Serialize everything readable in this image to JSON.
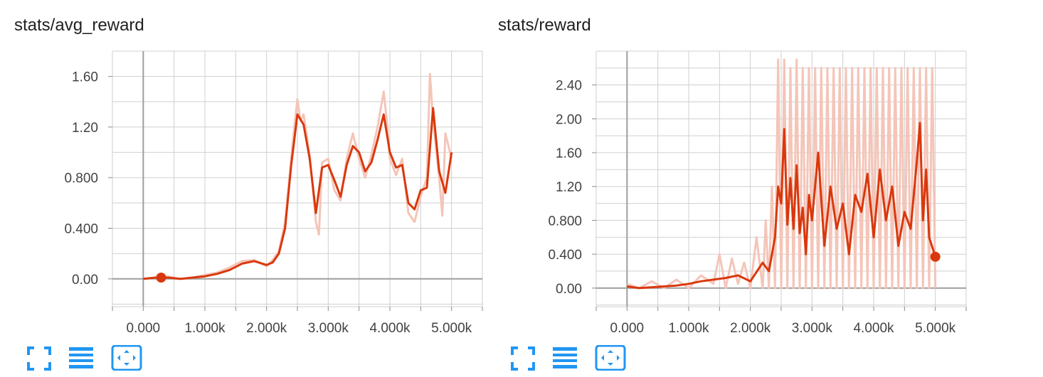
{
  "colors": {
    "accent": "#d9380d",
    "raw": "#f4c5b8",
    "icon": "#2196f3",
    "grid": "#cfcfcf",
    "axis": "#9e9e9e"
  },
  "toolbar_icons": [
    "expand-icon",
    "data-selection-icon",
    "fit-domain-icon"
  ],
  "chart_data": [
    {
      "type": "line",
      "title": "stats/avg_reward",
      "xlabel": "",
      "ylabel": "",
      "xlim": [
        -500,
        5500
      ],
      "ylim": [
        -0.22,
        1.8
      ],
      "x_ticks": [
        0,
        1000,
        2000,
        3000,
        4000,
        5000
      ],
      "x_tick_labels": [
        "0.000",
        "1.000k",
        "2.000k",
        "3.000k",
        "4.000k",
        "5.000k"
      ],
      "y_ticks": [
        0,
        0.4,
        0.8,
        1.2,
        1.6
      ],
      "y_tick_labels": [
        "0.00",
        "0.400",
        "0.800",
        "1.20",
        "1.60"
      ],
      "grid": true,
      "marker_point": {
        "x": 290,
        "y": 0.01
      },
      "series": [
        {
          "smoothed": true,
          "x": [
            0,
            200,
            400,
            600,
            800,
            1000,
            1200,
            1400,
            1600,
            1800,
            2000,
            2100,
            2200,
            2300,
            2400,
            2500,
            2600,
            2700,
            2800,
            2900,
            3000,
            3100,
            3200,
            3300,
            3400,
            3500,
            3600,
            3700,
            3800,
            3900,
            4000,
            4100,
            4200,
            4300,
            4400,
            4500,
            4600,
            4700,
            4800,
            4900,
            5000
          ],
          "y": [
            0.0,
            0.01,
            0.01,
            0.0,
            0.01,
            0.02,
            0.04,
            0.07,
            0.12,
            0.14,
            0.11,
            0.13,
            0.2,
            0.4,
            0.9,
            1.3,
            1.22,
            0.95,
            0.52,
            0.88,
            0.9,
            0.78,
            0.65,
            0.9,
            1.05,
            1.0,
            0.85,
            0.92,
            1.1,
            1.3,
            1.0,
            0.88,
            0.9,
            0.6,
            0.55,
            0.7,
            0.72,
            1.35,
            0.85,
            0.68,
            1.0
          ]
        },
        {
          "smoothed": false,
          "x": [
            0,
            200,
            400,
            600,
            800,
            1000,
            1200,
            1400,
            1600,
            1800,
            2000,
            2100,
            2200,
            2300,
            2400,
            2450,
            2500,
            2550,
            2600,
            2700,
            2800,
            2850,
            2900,
            3000,
            3100,
            3200,
            3300,
            3400,
            3500,
            3600,
            3700,
            3800,
            3900,
            3950,
            4000,
            4100,
            4200,
            4300,
            4400,
            4500,
            4600,
            4650,
            4700,
            4800,
            4850,
            4900,
            5000
          ],
          "y": [
            0.0,
            0.01,
            0.02,
            0.0,
            0.01,
            0.03,
            0.05,
            0.09,
            0.14,
            0.15,
            0.1,
            0.15,
            0.22,
            0.45,
            0.95,
            1.2,
            1.42,
            1.25,
            1.3,
            0.98,
            0.45,
            0.35,
            0.92,
            0.95,
            0.7,
            0.62,
            0.95,
            1.15,
            0.95,
            0.8,
            0.98,
            1.2,
            1.48,
            1.25,
            0.95,
            0.82,
            0.95,
            0.52,
            0.45,
            0.65,
            0.8,
            1.62,
            1.25,
            0.8,
            0.5,
            1.15,
            0.95
          ]
        }
      ]
    },
    {
      "type": "line",
      "title": "stats/reward",
      "xlabel": "",
      "ylabel": "",
      "xlim": [
        -500,
        5500
      ],
      "ylim": [
        -0.22,
        2.8
      ],
      "x_ticks": [
        0,
        1000,
        2000,
        3000,
        4000,
        5000
      ],
      "x_tick_labels": [
        "0.000",
        "1.000k",
        "2.000k",
        "3.000k",
        "4.000k",
        "5.000k"
      ],
      "y_ticks": [
        0,
        0.4,
        0.8,
        1.2,
        1.6,
        2.0,
        2.4
      ],
      "y_tick_labels": [
        "0.00",
        "0.400",
        "0.800",
        "1.20",
        "1.60",
        "2.00",
        "2.40"
      ],
      "grid": true,
      "marker_point": {
        "x": 5000,
        "y": 0.37
      },
      "series": [
        {
          "smoothed": true,
          "x": [
            0,
            200,
            400,
            600,
            800,
            1000,
            1200,
            1400,
            1600,
            1800,
            2000,
            2200,
            2300,
            2400,
            2450,
            2500,
            2550,
            2600,
            2650,
            2700,
            2750,
            2800,
            2850,
            2900,
            2950,
            3000,
            3100,
            3200,
            3300,
            3400,
            3500,
            3600,
            3700,
            3800,
            3900,
            4000,
            4100,
            4200,
            4300,
            4400,
            4500,
            4600,
            4700,
            4750,
            4800,
            4850,
            4900,
            5000
          ],
          "y": [
            0.02,
            0.0,
            0.01,
            0.02,
            0.03,
            0.05,
            0.08,
            0.1,
            0.12,
            0.15,
            0.08,
            0.3,
            0.2,
            0.6,
            1.2,
            1.0,
            1.88,
            0.75,
            1.3,
            0.7,
            1.45,
            0.65,
            0.95,
            0.4,
            1.1,
            0.8,
            1.6,
            0.5,
            1.2,
            0.7,
            1.0,
            0.4,
            1.1,
            0.9,
            1.35,
            0.6,
            1.4,
            0.8,
            1.2,
            0.5,
            0.9,
            0.7,
            1.5,
            1.95,
            0.8,
            1.4,
            0.6,
            0.37
          ]
        },
        {
          "smoothed": false,
          "x": [
            0,
            200,
            400,
            600,
            800,
            1000,
            1200,
            1400,
            1500,
            1600,
            1700,
            1800,
            1900,
            2000,
            2100,
            2200,
            2250,
            2300,
            2350,
            2400,
            2450,
            2500,
            2550,
            2600,
            2650,
            2700,
            2750,
            2800,
            2850,
            2900,
            2950,
            3000,
            3050,
            3100,
            3150,
            3200,
            3250,
            3300,
            3350,
            3400,
            3450,
            3500,
            3550,
            3600,
            3650,
            3700,
            3750,
            3800,
            3850,
            3900,
            3950,
            4000,
            4050,
            4100,
            4150,
            4200,
            4250,
            4300,
            4350,
            4400,
            4450,
            4500,
            4550,
            4600,
            4650,
            4700,
            4750,
            4800,
            4850,
            4900,
            4950,
            5000
          ],
          "y": [
            0.05,
            0.0,
            0.08,
            0.0,
            0.1,
            0.0,
            0.15,
            0.05,
            0.4,
            0.0,
            0.35,
            0.05,
            0.3,
            0.0,
            0.6,
            0.0,
            0.8,
            0.0,
            1.2,
            0.0,
            2.7,
            0.0,
            2.7,
            0.0,
            2.6,
            0.0,
            2.7,
            0.0,
            2.6,
            0.0,
            2.6,
            0.0,
            2.6,
            0.0,
            2.6,
            0.0,
            2.6,
            0.0,
            2.6,
            0.0,
            2.6,
            0.0,
            2.6,
            0.0,
            2.6,
            0.0,
            2.6,
            0.0,
            2.6,
            0.0,
            2.6,
            0.0,
            2.6,
            0.0,
            2.6,
            0.0,
            2.6,
            0.0,
            2.6,
            0.0,
            2.6,
            0.0,
            2.6,
            0.0,
            2.6,
            0.0,
            2.6,
            0.0,
            2.6,
            0.0,
            2.6,
            0.0
          ]
        }
      ]
    }
  ]
}
